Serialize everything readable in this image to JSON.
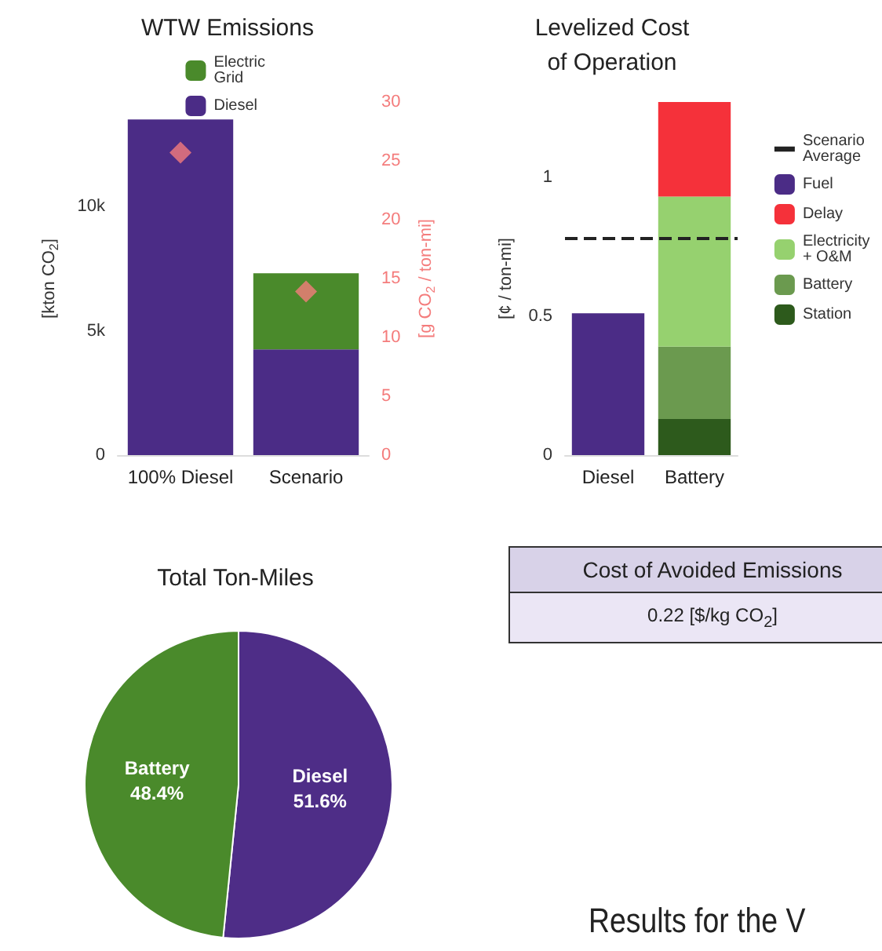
{
  "chart_data": [
    {
      "type": "bar",
      "title": "WTW Emissions",
      "categories": [
        "100% Diesel",
        "Scenario"
      ],
      "stacked": true,
      "legend": "top",
      "ylabel": "[kton CO$_{2}$]",
      "y2label": "[g CO$_{2}$ / ton-mi]",
      "ylim": [
        0,
        14200
      ],
      "yticks": [
        0,
        {
          "value": 5000,
          "label": "5k"
        },
        {
          "value": 10000,
          "label": "10k"
        }
      ],
      "y2lim": [
        0,
        30
      ],
      "y2ticks": [
        0,
        5,
        10,
        15,
        20,
        25,
        30
      ],
      "series": [
        {
          "name": "Diesel",
          "color": "#4b2c86",
          "values": [
            13500,
            4250
          ]
        },
        {
          "name": "Electric Grid",
          "color": "#4a8a2b",
          "values": [
            null,
            3060
          ]
        },
        {
          "type": "scatter",
          "axis": "y2",
          "marker": "diamond",
          "color": "#f47c7c",
          "values": [
            25.7,
            13.9
          ]
        }
      ]
    },
    {
      "type": "bar",
      "title": "Levelized Cost\nof Operation",
      "categories": [
        "Diesel",
        "Battery"
      ],
      "stacked": true,
      "legend": "right",
      "ylabel": "[¢ / ton-mi]",
      "ylim": [
        0,
        1.27
      ],
      "yticks": [
        0,
        0.5,
        1
      ],
      "ref_lines": [
        {
          "axis": "y",
          "value": 0.78,
          "label": "Scenario Average",
          "color": "#222222",
          "line_style": "dashed"
        }
      ],
      "series": [
        {
          "name": "Station",
          "color": "#2d5a1c",
          "values": [
            null,
            0.13
          ]
        },
        {
          "name": "Battery",
          "color": "#6b9a4f",
          "values": [
            null,
            0.26
          ]
        },
        {
          "name": "Electricity + O&M",
          "color": "#96d16f",
          "values": [
            null,
            0.54
          ]
        },
        {
          "name": "Delay",
          "color": "#f5313a",
          "values": [
            null,
            0.34
          ]
        },
        {
          "name": "Fuel",
          "color": "#4b2c86",
          "values": [
            0.51,
            null
          ]
        }
      ]
    },
    {
      "type": "pie",
      "title": "Total Ton-Miles",
      "categories": [
        "Diesel",
        "Battery"
      ],
      "values": [
        51.6,
        48.4
      ],
      "colors": [
        "#4e2d87",
        "#4a8a2b"
      ],
      "value_labels": [
        "51.6%",
        "48.4%"
      ]
    },
    {
      "type": "other",
      "title": "Cost of Avoided Emissions",
      "annotations": [
        "0.22 [$/kg CO$_{2}$]"
      ]
    },
    {
      "type": "other",
      "title": "Results for the V"
    }
  ]
}
